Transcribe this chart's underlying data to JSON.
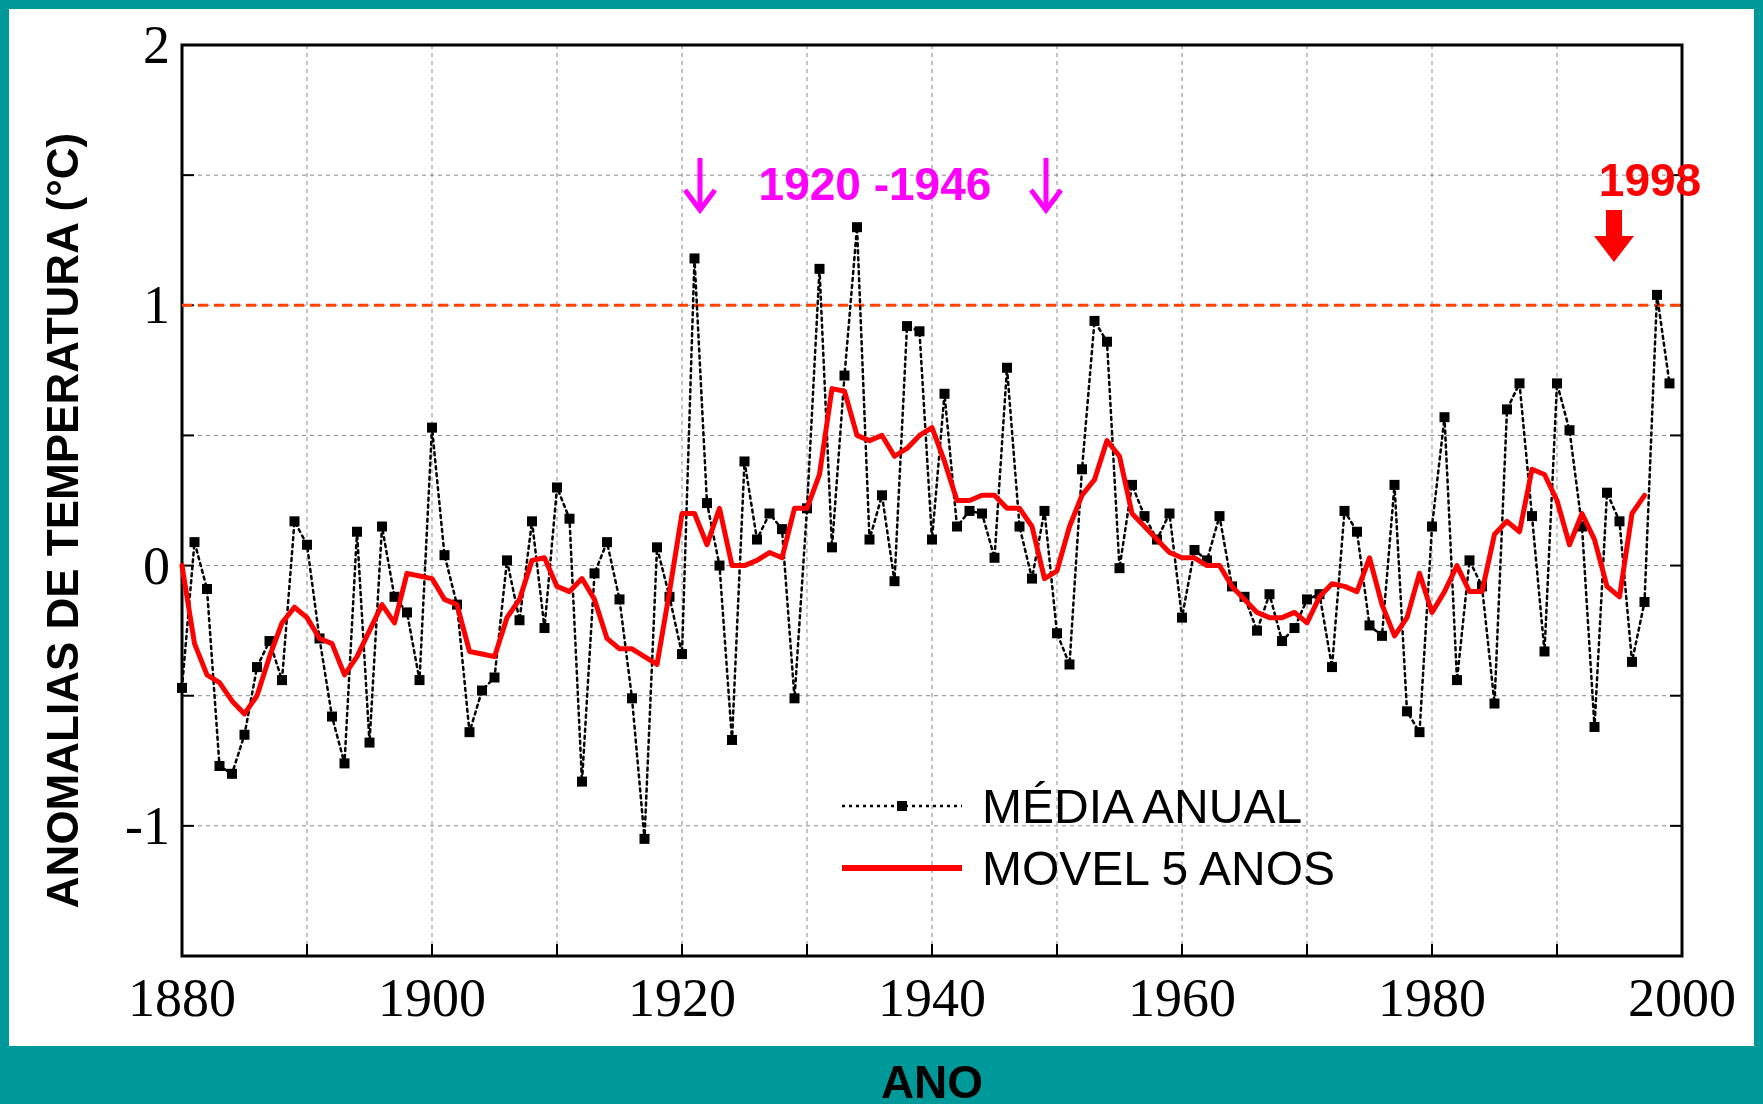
{
  "chart_data": {
    "type": "line",
    "xlabel": "ANO",
    "ylabel": "ANOMALIAS DE TEMPERATURA (°C)",
    "xlim": [
      1880,
      2000
    ],
    "ylim": [
      -1.5,
      2
    ],
    "xticks": [
      1880,
      {
        "value": 1890,
        "label": null
      },
      1900,
      {
        "value": 1910,
        "label": null
      },
      1920,
      {
        "value": 1930,
        "label": null
      },
      1940,
      {
        "value": 1950,
        "label": null
      },
      1960,
      {
        "value": 1970,
        "label": null
      },
      1980,
      {
        "value": 1990,
        "label": null
      },
      2000
    ],
    "yticks": [
      {
        "value": -1.5,
        "label": null
      },
      -1,
      {
        "value": -0.5,
        "label": null
      },
      0,
      {
        "value": 0.5,
        "label": null
      },
      1,
      {
        "value": 1.5,
        "label": null
      },
      2
    ],
    "grid": true,
    "legend": "bottom right",
    "ref_lines": [
      {
        "axis": "y",
        "value": 1,
        "color": "#ff4400",
        "line_style": "dashed"
      }
    ],
    "annotations": [
      "1920 -1946",
      "1998"
    ],
    "series": [
      {
        "name": "MÉDIA ANUAL",
        "color": "#000000",
        "marker": "square",
        "line_style": "dotted",
        "x": [
          1880,
          1881,
          1882,
          1883,
          1884,
          1885,
          1886,
          1887,
          1888,
          1889,
          1890,
          1891,
          1892,
          1893,
          1894,
          1895,
          1896,
          1897,
          1898,
          1899,
          1900,
          1901,
          1902,
          1903,
          1904,
          1905,
          1906,
          1907,
          1908,
          1909,
          1910,
          1911,
          1912,
          1913,
          1914,
          1915,
          1916,
          1917,
          1918,
          1919,
          1920,
          1921,
          1922,
          1923,
          1924,
          1925,
          1926,
          1927,
          1928,
          1929,
          1930,
          1931,
          1932,
          1933,
          1934,
          1935,
          1936,
          1937,
          1938,
          1939,
          1940,
          1941,
          1942,
          1943,
          1944,
          1945,
          1946,
          1947,
          1948,
          1949,
          1950,
          1951,
          1952,
          1953,
          1954,
          1955,
          1956,
          1957,
          1958,
          1959,
          1960,
          1961,
          1962,
          1963,
          1964,
          1965,
          1966,
          1967,
          1968,
          1969,
          1970,
          1971,
          1972,
          1973,
          1974,
          1975,
          1976,
          1977,
          1978,
          1979,
          1980,
          1981,
          1982,
          1983,
          1984,
          1985,
          1986,
          1987,
          1988,
          1989,
          1990,
          1991,
          1992,
          1993,
          1994,
          1995,
          1996,
          1997,
          1998,
          1999
        ],
        "values": [
          -0.47,
          0.09,
          -0.09,
          -0.77,
          -0.8,
          -0.65,
          -0.39,
          -0.29,
          -0.44,
          0.17,
          0.08,
          -0.28,
          -0.58,
          -0.76,
          0.13,
          -0.68,
          0.15,
          -0.12,
          -0.18,
          -0.44,
          0.53,
          0.04,
          -0.15,
          -0.64,
          -0.48,
          -0.43,
          0.02,
          -0.21,
          0.17,
          -0.24,
          0.3,
          0.18,
          -0.83,
          -0.03,
          0.09,
          -0.13,
          -0.51,
          -1.05,
          0.07,
          -0.12,
          -0.34,
          1.18,
          0.24,
          0,
          -0.67,
          0.4,
          0.1,
          0.2,
          0.14,
          -0.51,
          0.22,
          1.14,
          0.07,
          0.73,
          1.3,
          0.1,
          0.27,
          -0.06,
          0.92,
          0.9,
          0.1,
          0.66,
          0.15,
          0.21,
          0.2,
          0.03,
          0.76,
          0.15,
          -0.05,
          0.21,
          -0.26,
          -0.38,
          0.37,
          0.94,
          0.86,
          -0.01,
          0.31,
          0.19,
          0.1,
          0.2,
          -0.2,
          0.06,
          0.02,
          0.19,
          -0.08,
          -0.12,
          -0.25,
          -0.11,
          -0.29,
          -0.24,
          -0.13,
          -0.11,
          -0.39,
          0.21,
          0.13,
          -0.23,
          -0.27,
          0.31,
          -0.56,
          -0.64,
          0.15,
          0.57,
          -0.44,
          0.02,
          -0.08,
          -0.53,
          0.6,
          0.7,
          0.19,
          -0.33,
          0.7,
          0.52,
          0.15,
          -0.62,
          0.28,
          0.17,
          -0.37,
          -0.14,
          1.04,
          0.7
        ]
      },
      {
        "name": "MOVEL 5 ANOS",
        "color": "#ff0000",
        "marker": "none",
        "line_style": "solid",
        "x": [
          1880,
          1881,
          1882,
          1883,
          1884,
          1885,
          1886,
          1887,
          1888,
          1889,
          1890,
          1891,
          1892,
          1893,
          1894,
          1895,
          1896,
          1897,
          1898,
          1899,
          1900,
          1901,
          1902,
          1903,
          1904,
          1905,
          1906,
          1907,
          1908,
          1909,
          1910,
          1911,
          1912,
          1913,
          1914,
          1915,
          1916,
          1917,
          1918,
          1919,
          1920,
          1921,
          1922,
          1923,
          1924,
          1925,
          1926,
          1927,
          1928,
          1929,
          1930,
          1931,
          1932,
          1933,
          1934,
          1935,
          1936,
          1937,
          1938,
          1939,
          1940,
          1941,
          1942,
          1943,
          1944,
          1945,
          1946,
          1947,
          1948,
          1949,
          1950,
          1951,
          1952,
          1953,
          1954,
          1955,
          1956,
          1957,
          1958,
          1959,
          1960,
          1961,
          1962,
          1963,
          1964,
          1965,
          1966,
          1967,
          1968,
          1969,
          1970,
          1971,
          1972,
          1973,
          1974,
          1975,
          1976,
          1977,
          1978,
          1979,
          1980,
          1981,
          1982,
          1983,
          1984,
          1985,
          1986,
          1987,
          1988,
          1989,
          1990,
          1991,
          1992,
          1993,
          1994,
          1995,
          1996,
          1997
        ],
        "values": [
          0,
          -0.3,
          -0.42,
          -0.45,
          -0.52,
          -0.57,
          -0.5,
          -0.35,
          -0.22,
          -0.16,
          -0.2,
          -0.28,
          -0.3,
          -0.42,
          -0.35,
          -0.25,
          -0.15,
          -0.22,
          -0.03,
          -0.04,
          -0.05,
          -0.13,
          -0.15,
          -0.33,
          -0.34,
          -0.35,
          -0.2,
          -0.13,
          0.02,
          0.03,
          -0.08,
          -0.1,
          -0.05,
          -0.13,
          -0.28,
          -0.32,
          -0.32,
          -0.35,
          -0.38,
          -0.1,
          0.2,
          0.2,
          0.08,
          0.22,
          0,
          0,
          0.02,
          0.05,
          0.03,
          0.22,
          0.22,
          0.35,
          0.68,
          0.67,
          0.5,
          0.48,
          0.5,
          0.42,
          0.45,
          0.5,
          0.53,
          0.4,
          0.25,
          0.25,
          0.27,
          0.27,
          0.22,
          0.22,
          0.15,
          -0.05,
          -0.02,
          0.15,
          0.27,
          0.33,
          0.48,
          0.42,
          0.2,
          0.15,
          0.1,
          0.05,
          0.03,
          0.03,
          0,
          0,
          -0.08,
          -0.13,
          -0.18,
          -0.2,
          -0.2,
          -0.18,
          -0.22,
          -0.12,
          -0.07,
          -0.08,
          -0.1,
          0.03,
          -0.15,
          -0.27,
          -0.2,
          -0.03,
          -0.18,
          -0.1,
          0,
          -0.1,
          -0.1,
          0.12,
          0.17,
          0.13,
          0.37,
          0.35,
          0.25,
          0.08,
          0.2,
          0.1,
          -0.08,
          -0.12,
          0.2,
          0.27
        ]
      }
    ]
  }
}
